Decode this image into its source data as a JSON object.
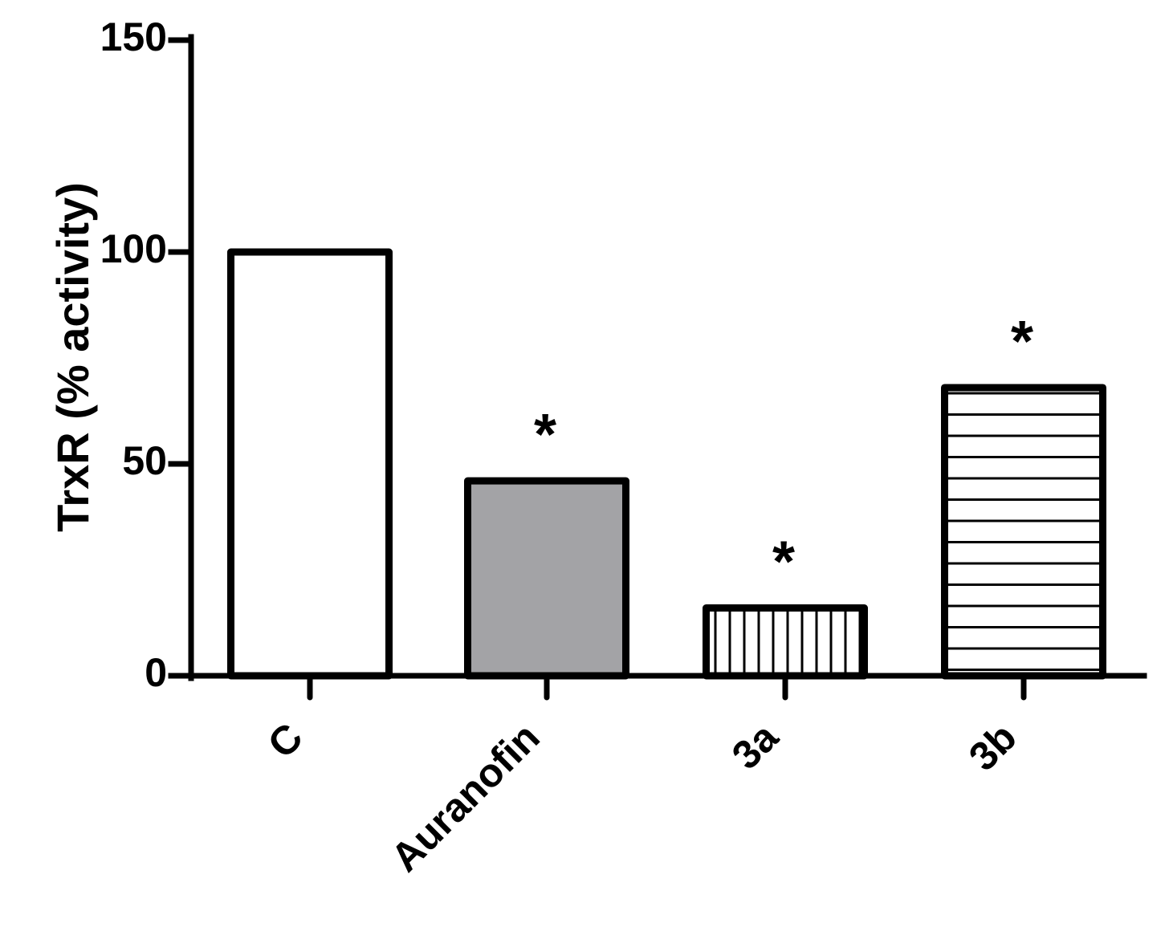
{
  "chart_data": {
    "type": "bar",
    "categories": [
      "C",
      "Auranofin",
      "3a",
      "3b"
    ],
    "values": [
      100,
      46,
      16,
      68
    ],
    "ylabel": "TrxR (% activity)",
    "xlabel": "",
    "ylim": [
      0,
      150
    ],
    "yticks": [
      0,
      50,
      100,
      150
    ],
    "annotations": [
      "",
      "*",
      "*",
      "*"
    ],
    "bar_fills": [
      "white",
      "gray",
      "vertical-stripes",
      "horizontal-stripes"
    ],
    "colors": {
      "outline": "#000000",
      "gray_fill": "#a3a3a6",
      "background": "#ffffff"
    },
    "grid": false,
    "legend": "none"
  }
}
